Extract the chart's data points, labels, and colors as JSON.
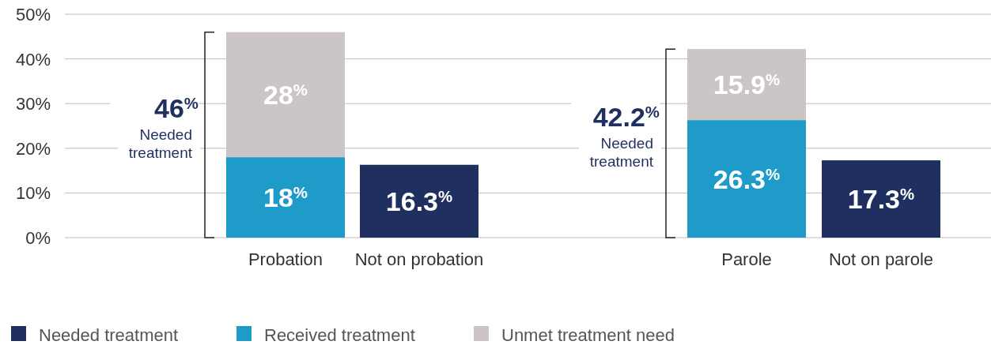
{
  "chart_data": {
    "type": "bar",
    "stacked": true,
    "categories": [
      "Probation",
      "Not on probation",
      "Parole",
      "Not on parole"
    ],
    "series": [
      {
        "name": "Needed treatment",
        "color": "#1f2f5f",
        "values": [
          null,
          16.3,
          null,
          17.3
        ],
        "value_labels": [
          null,
          "16.3$^{%}$",
          null,
          "17.3$^{%}$"
        ]
      },
      {
        "name": "Received treatment",
        "color": "#1e9bc8",
        "values": [
          18,
          null,
          26.3,
          null
        ],
        "value_labels": [
          "18$^{%}$",
          null,
          "26.3$^{%}$",
          null
        ]
      },
      {
        "name": "Unmet treatment need",
        "color": "#cbc5c5",
        "values": [
          28,
          null,
          15.9,
          null
        ],
        "value_labels": [
          "28$^{%}$",
          null,
          "15.9$^{%}$",
          null
        ]
      }
    ],
    "ylim": [
      0,
      50
    ],
    "yticks": [
      {
        "value": 0,
        "label": "0%"
      },
      {
        "value": 10,
        "label": "10%"
      },
      {
        "value": 20,
        "label": "20%"
      },
      {
        "value": 30,
        "label": "30%"
      },
      {
        "value": 40,
        "label": "40%"
      },
      {
        "value": 50,
        "label": "50%"
      }
    ],
    "grid": "y",
    "legend": "bottom",
    "annotations": [
      "46$^{%}$",
      "Needed treatment",
      "42.2$^{%}$",
      "Needed treatment"
    ]
  }
}
